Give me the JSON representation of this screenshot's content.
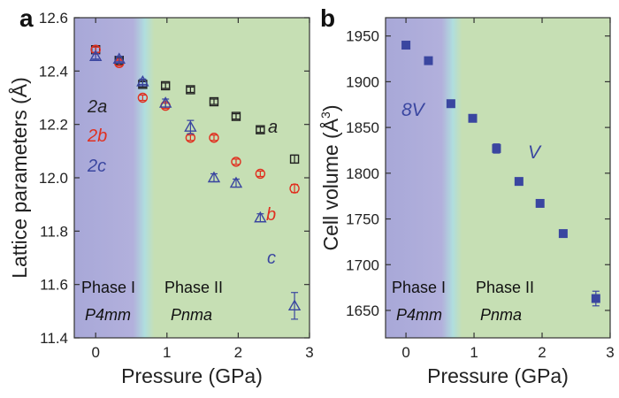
{
  "chart_data": [
    {
      "panel_label": "a",
      "type": "scatter",
      "xlabel": "Pressure (GPa)",
      "ylabel": "Lattice parameters (Å)",
      "xlim": [
        -0.3,
        3.0
      ],
      "ylim": [
        11.4,
        12.6
      ],
      "xticks": [
        0,
        1,
        2,
        3
      ],
      "yticks": [
        11.4,
        11.6,
        11.8,
        12.0,
        12.2,
        12.4,
        12.6
      ],
      "yticks_labels": [
        "11.4",
        "11.6",
        "11.8",
        "12.0",
        "12.2",
        "12.4",
        "12.6"
      ],
      "phase_boundary_x": 0.72,
      "phases": [
        {
          "name": "Phase I",
          "space_group": "P4mm",
          "color": "#a8a8d8"
        },
        {
          "name": "Phase II",
          "space_group": "Pnma",
          "color": "#c6dfb4"
        }
      ],
      "series": [
        {
          "name": "2a",
          "curve_label": "a",
          "marker": "square",
          "color": "#222222",
          "x": [
            0.0,
            0.33,
            0.66,
            0.98,
            1.33,
            1.66,
            1.97,
            2.31,
            2.79
          ],
          "y": [
            12.48,
            12.44,
            12.35,
            12.345,
            12.33,
            12.285,
            12.23,
            12.18,
            12.07
          ],
          "err": [
            0.01,
            0.01,
            0.01,
            0.01,
            0.01,
            0.01,
            0.01,
            0.01,
            0.015
          ]
        },
        {
          "name": "2b",
          "curve_label": "b",
          "marker": "circle",
          "color": "#e03020",
          "x": [
            0.0,
            0.33,
            0.66,
            0.98,
            1.33,
            1.66,
            1.97,
            2.31,
            2.79
          ],
          "y": [
            12.48,
            12.43,
            12.3,
            12.27,
            12.15,
            12.15,
            12.06,
            12.015,
            11.96
          ],
          "err": [
            0.01,
            0.01,
            0.01,
            0.01,
            0.01,
            0.01,
            0.01,
            0.01,
            0.015
          ]
        },
        {
          "name": "2c",
          "curve_label": "c",
          "marker": "triangle",
          "color": "#3a46a0",
          "x": [
            0.0,
            0.33,
            0.66,
            0.98,
            1.33,
            1.66,
            1.97,
            2.31,
            2.79
          ],
          "y": [
            12.455,
            12.445,
            12.36,
            12.28,
            12.19,
            12.0,
            11.98,
            11.85,
            11.52
          ],
          "err": [
            0.01,
            0.01,
            0.01,
            0.015,
            0.025,
            0.015,
            0.015,
            0.015,
            0.05
          ]
        }
      ],
      "legend": [
        "2a",
        "2b",
        "2c"
      ],
      "curve_labels": [
        "a",
        "b",
        "c"
      ]
    },
    {
      "panel_label": "b",
      "type": "scatter",
      "xlabel": "Pressure (GPa)",
      "ylabel": "Cell volume (Å³)",
      "ylabel_parts": [
        "Cell volume (Å",
        "3",
        ")"
      ],
      "xlim": [
        -0.3,
        3.0
      ],
      "ylim": [
        1620,
        1970
      ],
      "xticks": [
        0,
        1,
        2,
        3
      ],
      "yticks": [
        1650,
        1700,
        1750,
        1800,
        1850,
        1900,
        1950
      ],
      "phase_boundary_x": 0.72,
      "phases": [
        {
          "name": "Phase I",
          "space_group": "P4mm",
          "color": "#a8a8d8"
        },
        {
          "name": "Phase II",
          "space_group": "Pnma",
          "color": "#c6dfb4"
        }
      ],
      "series": [
        {
          "name": "8V",
          "curve_label": "V",
          "marker": "filled-square",
          "color": "#3a46a0",
          "x": [
            0.0,
            0.33,
            0.66,
            0.98,
            1.33,
            1.66,
            1.97,
            2.31,
            2.79
          ],
          "y": [
            1940,
            1923,
            1876,
            1860,
            1827,
            1791,
            1767,
            1734,
            1663
          ],
          "err": [
            0,
            0,
            0,
            0,
            5,
            0,
            0,
            0,
            8
          ]
        }
      ]
    }
  ]
}
